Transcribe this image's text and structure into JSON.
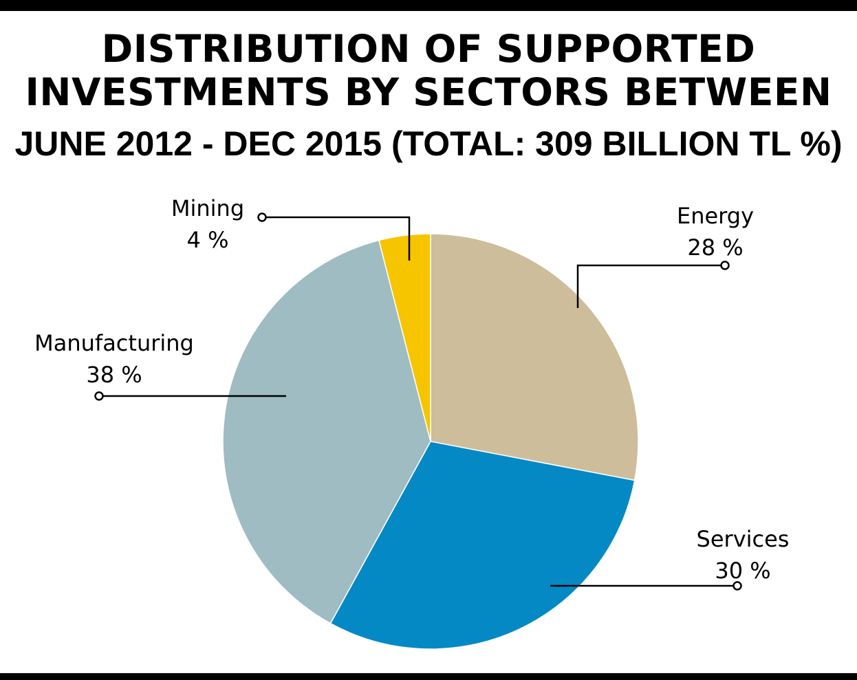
{
  "header": {
    "title_line1": "DISTRIBUTION OF SUPPORTED",
    "title_line2": "INVESTMENTS BY SECTORS BETWEEN",
    "subtitle": "JUNE 2012 - DEC 2015 (TOTAL: 309 BILLION TL %)"
  },
  "chart_data": {
    "type": "pie",
    "title": "DISTRIBUTION OF SUPPORTED INVESTMENTS BY SECTORS BETWEEN",
    "subtitle": "JUNE 2012 - DEC 2015 (TOTAL: 309 BILLION TL %)",
    "slices": [
      {
        "name": "Energy",
        "value": 28,
        "label": "28 %",
        "color": "#cdbd9b"
      },
      {
        "name": "Services",
        "value": 30,
        "label": "30 %",
        "color": "#0589c5"
      },
      {
        "name": "Manufacturing",
        "value": 38,
        "label": "38 %",
        "color": "#9ebcc2"
      },
      {
        "name": "Mining",
        "value": 4,
        "label": "4 %",
        "color": "#f7c400"
      }
    ]
  }
}
